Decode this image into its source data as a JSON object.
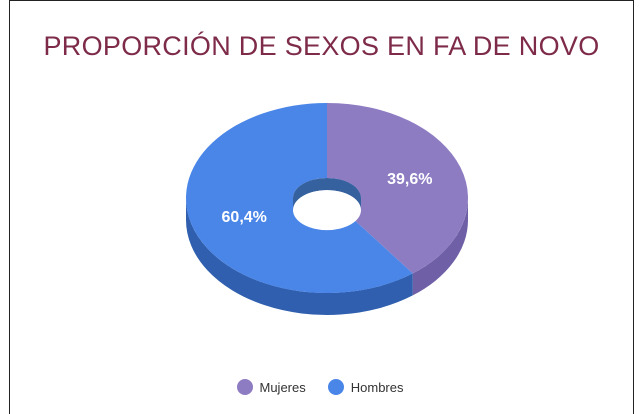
{
  "chart_data": {
    "type": "pie",
    "title": "PROPORCIÓN DE SEXOS EN FA DE NOVO",
    "style": "3d-donut",
    "legend_position": "bottom",
    "series": [
      {
        "name": "Mujeres",
        "value": 39.6,
        "label": "39,6%",
        "color": "#8e7cc3",
        "side_color": "#6f5fa6"
      },
      {
        "name": "Hombres",
        "value": 60.4,
        "label": "60,4%",
        "color": "#4a86e8",
        "side_color": "#2f5fae"
      }
    ]
  }
}
